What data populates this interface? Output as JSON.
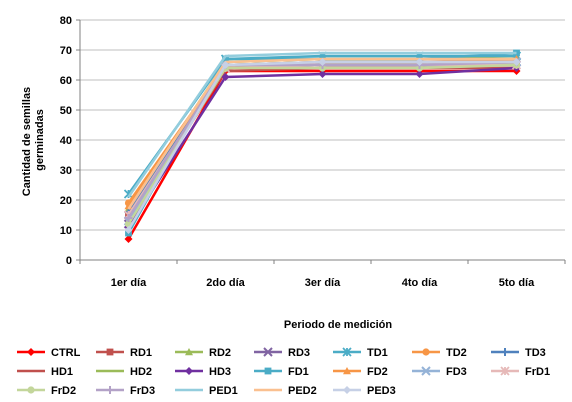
{
  "chart_data": {
    "type": "line",
    "xlabel": "Periodo de medición",
    "ylabel_lines": [
      "Cantidad de semillas",
      "germinadas"
    ],
    "ylim": [
      0,
      80
    ],
    "y_ticks": [
      0,
      10,
      20,
      30,
      40,
      50,
      60,
      70,
      80
    ],
    "categories": [
      "1er día",
      "2do día",
      "3er día",
      "4to día",
      "5to día"
    ],
    "grid": "horizontal",
    "legend_position": "bottom",
    "series": [
      {
        "name": "CTRL",
        "color": "#ff0000",
        "marker": "diamond",
        "values": [
          7,
          63,
          63,
          63,
          63
        ]
      },
      {
        "name": "RD1",
        "color": "#c0504d",
        "marker": "square",
        "values": [
          15,
          65,
          65,
          65,
          66
        ]
      },
      {
        "name": "RD2",
        "color": "#9bbb59",
        "marker": "triangle",
        "values": [
          17,
          66,
          67,
          67,
          68
        ]
      },
      {
        "name": "RD3",
        "color": "#8064a2",
        "marker": "x",
        "values": [
          12,
          64,
          65,
          65,
          66
        ]
      },
      {
        "name": "TD1",
        "color": "#4bacc6",
        "marker": "star",
        "values": [
          22,
          67,
          68,
          68,
          68
        ]
      },
      {
        "name": "TD2",
        "color": "#f79646",
        "marker": "circle",
        "values": [
          19,
          65,
          66,
          66,
          66
        ]
      },
      {
        "name": "TD3",
        "color": "#4f81bd",
        "marker": "plus",
        "values": [
          16,
          64,
          65,
          65,
          65
        ]
      },
      {
        "name": "HD1",
        "color": "#c0504d",
        "marker": "none",
        "values": [
          14,
          63,
          64,
          64,
          64
        ]
      },
      {
        "name": "HD2",
        "color": "#9bbb59",
        "marker": "none",
        "values": [
          13,
          64,
          65,
          65,
          65
        ]
      },
      {
        "name": "HD3",
        "color": "#7030a0",
        "marker": "diamond",
        "values": [
          11,
          61,
          62,
          62,
          64
        ]
      },
      {
        "name": "FD1",
        "color": "#4bacc6",
        "marker": "square",
        "values": [
          9,
          67,
          67,
          67,
          69
        ]
      },
      {
        "name": "FD2",
        "color": "#f79646",
        "marker": "triangle",
        "values": [
          18,
          65,
          66,
          66,
          67
        ]
      },
      {
        "name": "FD3",
        "color": "#95b3d7",
        "marker": "x",
        "values": [
          13,
          65,
          66,
          66,
          66
        ]
      },
      {
        "name": "FrD1",
        "color": "#e6b9b8",
        "marker": "star",
        "values": [
          15,
          64,
          65,
          65,
          65
        ]
      },
      {
        "name": "FrD2",
        "color": "#c3d69b",
        "marker": "circle",
        "values": [
          12,
          64,
          64,
          64,
          65
        ]
      },
      {
        "name": "FrD3",
        "color": "#b3a2c7",
        "marker": "plus",
        "values": [
          14,
          65,
          65,
          65,
          66
        ]
      },
      {
        "name": "PED1",
        "color": "#93cddd",
        "marker": "none",
        "values": [
          21,
          68,
          69,
          69,
          69
        ]
      },
      {
        "name": "PED2",
        "color": "#fac090",
        "marker": "none",
        "values": [
          17,
          66,
          67,
          67,
          67
        ]
      },
      {
        "name": "PED3",
        "color": "#c6d0e6",
        "marker": "diamond",
        "values": [
          10,
          65,
          66,
          66,
          66
        ]
      }
    ]
  }
}
